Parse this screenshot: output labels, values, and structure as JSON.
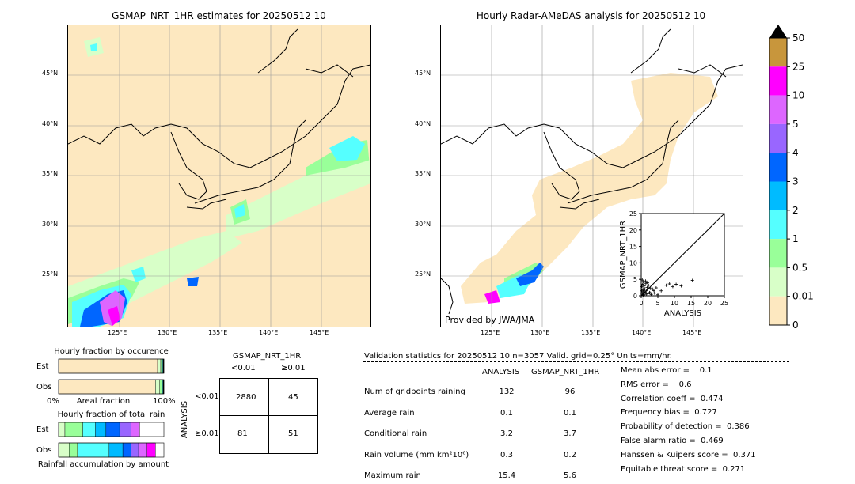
{
  "left_map": {
    "title": "GSMAP_NRT_1HR estimates for 20250512 10",
    "lat_labels": [
      "45°N",
      "40°N",
      "35°N",
      "30°N",
      "25°N"
    ],
    "lon_labels": [
      "125°E",
      "130°E",
      "135°E",
      "140°E",
      "145°E"
    ]
  },
  "right_map": {
    "title": "Hourly Radar-AMeDAS analysis for 20250512 10",
    "lat_labels": [
      "45°N",
      "40°N",
      "35°N",
      "30°N",
      "25°N"
    ],
    "lon_labels": [
      "125°E",
      "130°E",
      "135°E",
      "140°E",
      "145°E"
    ],
    "credit": "Provided by JWA/JMA"
  },
  "colorbar": {
    "labels": [
      "50",
      "25",
      "10",
      "5",
      "4",
      "3",
      "2",
      "1",
      "0.5",
      "0.01",
      "0"
    ],
    "colors": [
      "#c8963c",
      "#ff00ff",
      "#dd66ff",
      "#9966ff",
      "#0066ff",
      "#00bbff",
      "#55ffff",
      "#99ff99",
      "#d8ffc8",
      "#fde8c0"
    ]
  },
  "chart_data": [
    {
      "type": "scatter",
      "xlabel": "ANALYSIS",
      "ylabel": "GSMAP_NRT_1HR",
      "xlim": [
        0,
        25
      ],
      "ylim": [
        0,
        25
      ],
      "xticks": [
        "0",
        "5",
        "10",
        "15",
        "20",
        "25"
      ],
      "yticks": [
        "0",
        "5",
        "10",
        "15",
        "20",
        "25"
      ],
      "points": [
        [
          0.3,
          0.5
        ],
        [
          0.5,
          1.2
        ],
        [
          0.8,
          0.3
        ],
        [
          1.0,
          2.0
        ],
        [
          1.2,
          0.8
        ],
        [
          0.4,
          3.5
        ],
        [
          0.6,
          4.2
        ],
        [
          1.5,
          1.5
        ],
        [
          2.0,
          0.6
        ],
        [
          0.2,
          2.8
        ],
        [
          0.9,
          3.0
        ],
        [
          1.8,
          2.5
        ],
        [
          2.5,
          1.0
        ],
        [
          3.0,
          0.4
        ],
        [
          0.7,
          1.8
        ],
        [
          1.3,
          4.5
        ],
        [
          2.2,
          3.2
        ],
        [
          0.5,
          0.9
        ],
        [
          3.5,
          2.0
        ],
        [
          4.0,
          0.8
        ],
        [
          0.3,
          4.8
        ],
        [
          1.1,
          1.1
        ],
        [
          1.6,
          0.5
        ],
        [
          2.8,
          2.2
        ],
        [
          0.8,
          2.4
        ],
        [
          5.0,
          0.3
        ],
        [
          6.0,
          1.5
        ],
        [
          7.5,
          3.2
        ],
        [
          8.5,
          3.6
        ],
        [
          9.5,
          2.8
        ],
        [
          10.5,
          3.5
        ],
        [
          12.0,
          3.0
        ],
        [
          15.4,
          4.7
        ],
        [
          0.6,
          0.2
        ],
        [
          1.4,
          3.8
        ],
        [
          2.6,
          0.9
        ],
        [
          3.8,
          1.6
        ],
        [
          4.5,
          2.4
        ],
        [
          0.2,
          1.5
        ],
        [
          1.9,
          4.0
        ]
      ]
    },
    {
      "type": "bar",
      "title": "Hourly fraction by occurence",
      "categories": [
        "Est",
        "Obs"
      ],
      "xlabel": "Areal fraction",
      "xticks": [
        "0%",
        "100%"
      ],
      "series": [
        {
          "values": [
            0.94,
            0.92
          ],
          "color": "#fde8c0"
        },
        {
          "values": [
            0.03,
            0.04
          ],
          "color": "#d8ffc8"
        },
        {
          "values": [
            0.01,
            0.02
          ],
          "color": "#99ff99"
        },
        {
          "values": [
            0.01,
            0.01
          ],
          "color": "#55ffff"
        },
        {
          "values": [
            0.01,
            0.01
          ],
          "color": "#000000"
        }
      ]
    },
    {
      "type": "bar",
      "title": "Hourly fraction of total rain",
      "categories": [
        "Est",
        "Obs"
      ],
      "xlabel": "Rainfall accumulation by amount",
      "series": [
        {
          "values": [
            0.06,
            0.1
          ],
          "color": "#d8ffc8"
        },
        {
          "values": [
            0.17,
            0.08
          ],
          "color": "#99ff99"
        },
        {
          "values": [
            0.12,
            0.3
          ],
          "color": "#55ffff"
        },
        {
          "values": [
            0.1,
            0.13
          ],
          "color": "#00bbff"
        },
        {
          "values": [
            0.13,
            0.08
          ],
          "color": "#0066ff"
        },
        {
          "values": [
            0.11,
            0.07
          ],
          "color": "#9966ff"
        },
        {
          "values": [
            0.08,
            0.08
          ],
          "color": "#dd66ff"
        },
        {
          "values": [
            0.0,
            0.08
          ],
          "color": "#ff00ff"
        }
      ]
    },
    {
      "type": "table",
      "title": "GSMAP_NRT_1HR",
      "col_headers": [
        "<0.01",
        "≥0.01"
      ],
      "row_label": "ANALYSIS",
      "row_headers": [
        "<0.01",
        "≥0.01"
      ],
      "cells": [
        [
          "2880",
          "45"
        ],
        [
          "81",
          "51"
        ]
      ]
    }
  ],
  "stats": {
    "header": "Validation statistics for 20250512 10  n=3057 Valid. grid=0.25°  Units=mm/hr.",
    "col1": "ANALYSIS",
    "col2": "GSMAP_NRT_1HR",
    "rows": [
      {
        "label": "Num of gridpoints raining",
        "a": "132",
        "g": "96"
      },
      {
        "label": "Average rain",
        "a": "0.1",
        "g": "0.1"
      },
      {
        "label": "Conditional rain",
        "a": "3.2",
        "g": "3.7"
      },
      {
        "label": "Rain volume (mm km²10⁶)",
        "a": "0.3",
        "g": "0.2"
      },
      {
        "label": "Maximum rain",
        "a": "15.4",
        "g": "5.6"
      }
    ],
    "scores": [
      "Mean abs error =    0.1",
      "RMS error =    0.6",
      "Correlation coeff =  0.474",
      "Frequency bias =  0.727",
      "Probability of detection =  0.386",
      "False alarm ratio =  0.469",
      "Hanssen & Kuipers score =  0.371",
      "Equitable threat score =  0.271"
    ]
  }
}
